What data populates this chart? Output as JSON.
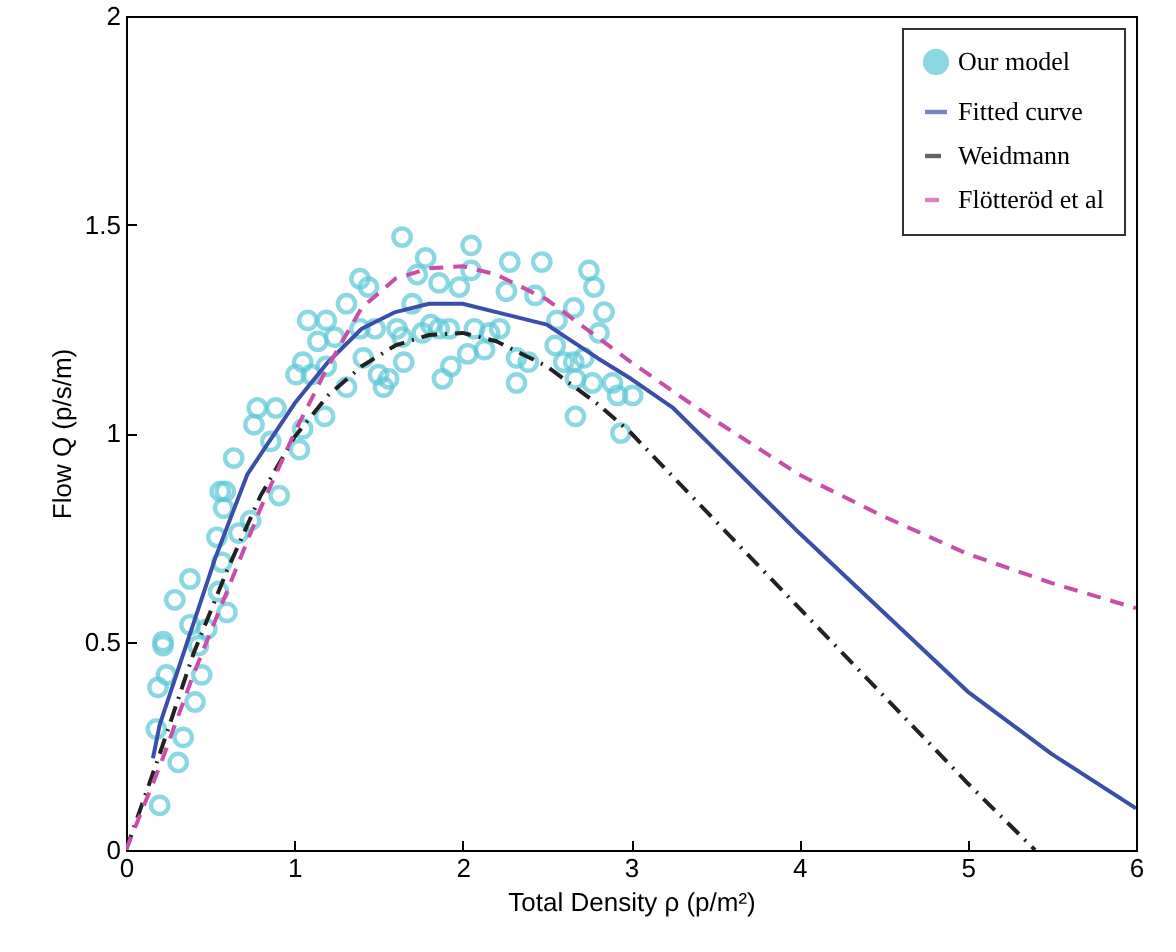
{
  "chart_data": {
    "type": "line",
    "xlabel": "Total Density ρ (p/m²)",
    "ylabel": "Flow Q (p/s/m)",
    "xlim": [
      0,
      6
    ],
    "ylim": [
      0,
      2
    ],
    "xticks": [
      0,
      1,
      2,
      3,
      4,
      5,
      6
    ],
    "yticks": [
      0,
      0.5,
      1,
      1.5,
      2
    ],
    "legend": "top right",
    "grid": false,
    "series": [
      {
        "name": "Our model",
        "type": "scatter",
        "marker": "circle",
        "color": "#5bc8d8",
        "x": [
          0.2,
          0.31,
          0.34,
          0.18,
          0.41,
          0.19,
          0.24,
          0.45,
          0.22,
          0.22,
          0.43,
          0.48,
          0.38,
          0.6,
          0.55,
          0.29,
          0.38,
          0.57,
          0.54,
          0.67,
          0.74,
          0.58,
          0.56,
          0.59,
          0.91,
          0.64,
          0.76,
          0.86,
          1.03,
          0.89,
          0.78,
          1.05,
          1.18,
          1.1,
          1.64,
          1.78,
          2.05,
          2.28,
          2.47,
          2.75,
          1.39,
          1.44,
          1.73,
          1.86,
          1.98,
          2.05,
          2.26,
          2.43,
          2.78,
          1.31,
          1.7,
          2.66,
          2.84,
          1.08,
          1.19,
          1.39,
          1.48,
          1.61,
          1.81,
          1.86,
          1.92,
          2.07,
          2.16,
          2.22,
          2.56,
          1.14,
          1.24,
          1.64,
          1.76,
          2.81,
          1.05,
          1.01,
          1.19,
          1.41,
          1.65,
          1.93,
          2.03,
          2.13,
          2.55,
          2.6,
          2.66,
          2.72,
          2.32,
          2.39,
          1.5,
          1.53,
          1.56,
          1.31,
          1.88,
          2.32,
          2.67,
          2.77,
          2.89,
          2.92,
          3.01,
          2.67,
          2.94
        ],
        "values": [
          0.107,
          0.21,
          0.27,
          0.29,
          0.355,
          0.39,
          0.42,
          0.42,
          0.49,
          0.5,
          0.49,
          0.53,
          0.54,
          0.57,
          0.62,
          0.6,
          0.65,
          0.69,
          0.75,
          0.76,
          0.79,
          0.82,
          0.86,
          0.86,
          0.85,
          0.94,
          1.02,
          0.98,
          0.96,
          1.06,
          1.06,
          1.01,
          1.04,
          1.14,
          1.47,
          1.42,
          1.45,
          1.41,
          1.41,
          1.39,
          1.37,
          1.35,
          1.38,
          1.36,
          1.35,
          1.39,
          1.34,
          1.33,
          1.35,
          1.31,
          1.31,
          1.3,
          1.29,
          1.27,
          1.27,
          1.25,
          1.25,
          1.25,
          1.26,
          1.25,
          1.25,
          1.25,
          1.24,
          1.25,
          1.27,
          1.22,
          1.23,
          1.23,
          1.24,
          1.24,
          1.17,
          1.14,
          1.16,
          1.18,
          1.17,
          1.16,
          1.19,
          1.2,
          1.21,
          1.17,
          1.17,
          1.18,
          1.18,
          1.17,
          1.14,
          1.11,
          1.13,
          1.11,
          1.13,
          1.12,
          1.13,
          1.12,
          1.12,
          1.09,
          1.09,
          1.04,
          1.0
        ]
      },
      {
        "name": "Fitted curve",
        "type": "line",
        "line_style": "solid",
        "color": "#3a4fa8",
        "x": [
          0.16,
          0.2,
          0.34,
          0.53,
          0.72,
          1.0,
          1.2,
          1.4,
          1.6,
          1.8,
          2.0,
          2.2,
          2.5,
          2.8,
          3.0,
          3.25,
          3.5,
          4.0,
          4.5,
          5.0,
          5.5,
          6.0
        ],
        "values": [
          0.22,
          0.3,
          0.47,
          0.7,
          0.9,
          1.07,
          1.17,
          1.25,
          1.29,
          1.31,
          1.31,
          1.29,
          1.26,
          1.18,
          1.13,
          1.06,
          0.96,
          0.76,
          0.57,
          0.38,
          0.23,
          0.1
        ]
      },
      {
        "name": "Weidmann",
        "type": "line",
        "line_style": "dashdot",
        "color": "#222222",
        "x": [
          0,
          0.2,
          0.4,
          0.6,
          0.8,
          1.0,
          1.2,
          1.4,
          1.6,
          1.8,
          2.0,
          2.2,
          2.5,
          2.8,
          3.0,
          3.5,
          4.0,
          4.5,
          5.0,
          5.4
        ],
        "values": [
          0,
          0.23,
          0.47,
          0.67,
          0.85,
          0.99,
          1.09,
          1.16,
          1.21,
          1.235,
          1.24,
          1.22,
          1.16,
          1.07,
          1.0,
          0.79,
          0.58,
          0.37,
          0.16,
          0
        ]
      },
      {
        "name": "Flötteröd et al",
        "type": "line",
        "line_style": "dashed",
        "color": "#c84fa8",
        "x": [
          0,
          0.2,
          0.4,
          0.6,
          0.8,
          1.0,
          1.2,
          1.4,
          1.6,
          1.8,
          2.0,
          2.2,
          2.5,
          2.8,
          3.0,
          3.5,
          4.0,
          4.5,
          5.0,
          5.5,
          6.0
        ],
        "values": [
          0,
          0.2,
          0.42,
          0.62,
          0.82,
          1.0,
          1.16,
          1.3,
          1.37,
          1.395,
          1.4,
          1.38,
          1.32,
          1.23,
          1.17,
          1.03,
          0.9,
          0.8,
          0.71,
          0.64,
          0.58
        ]
      }
    ]
  }
}
